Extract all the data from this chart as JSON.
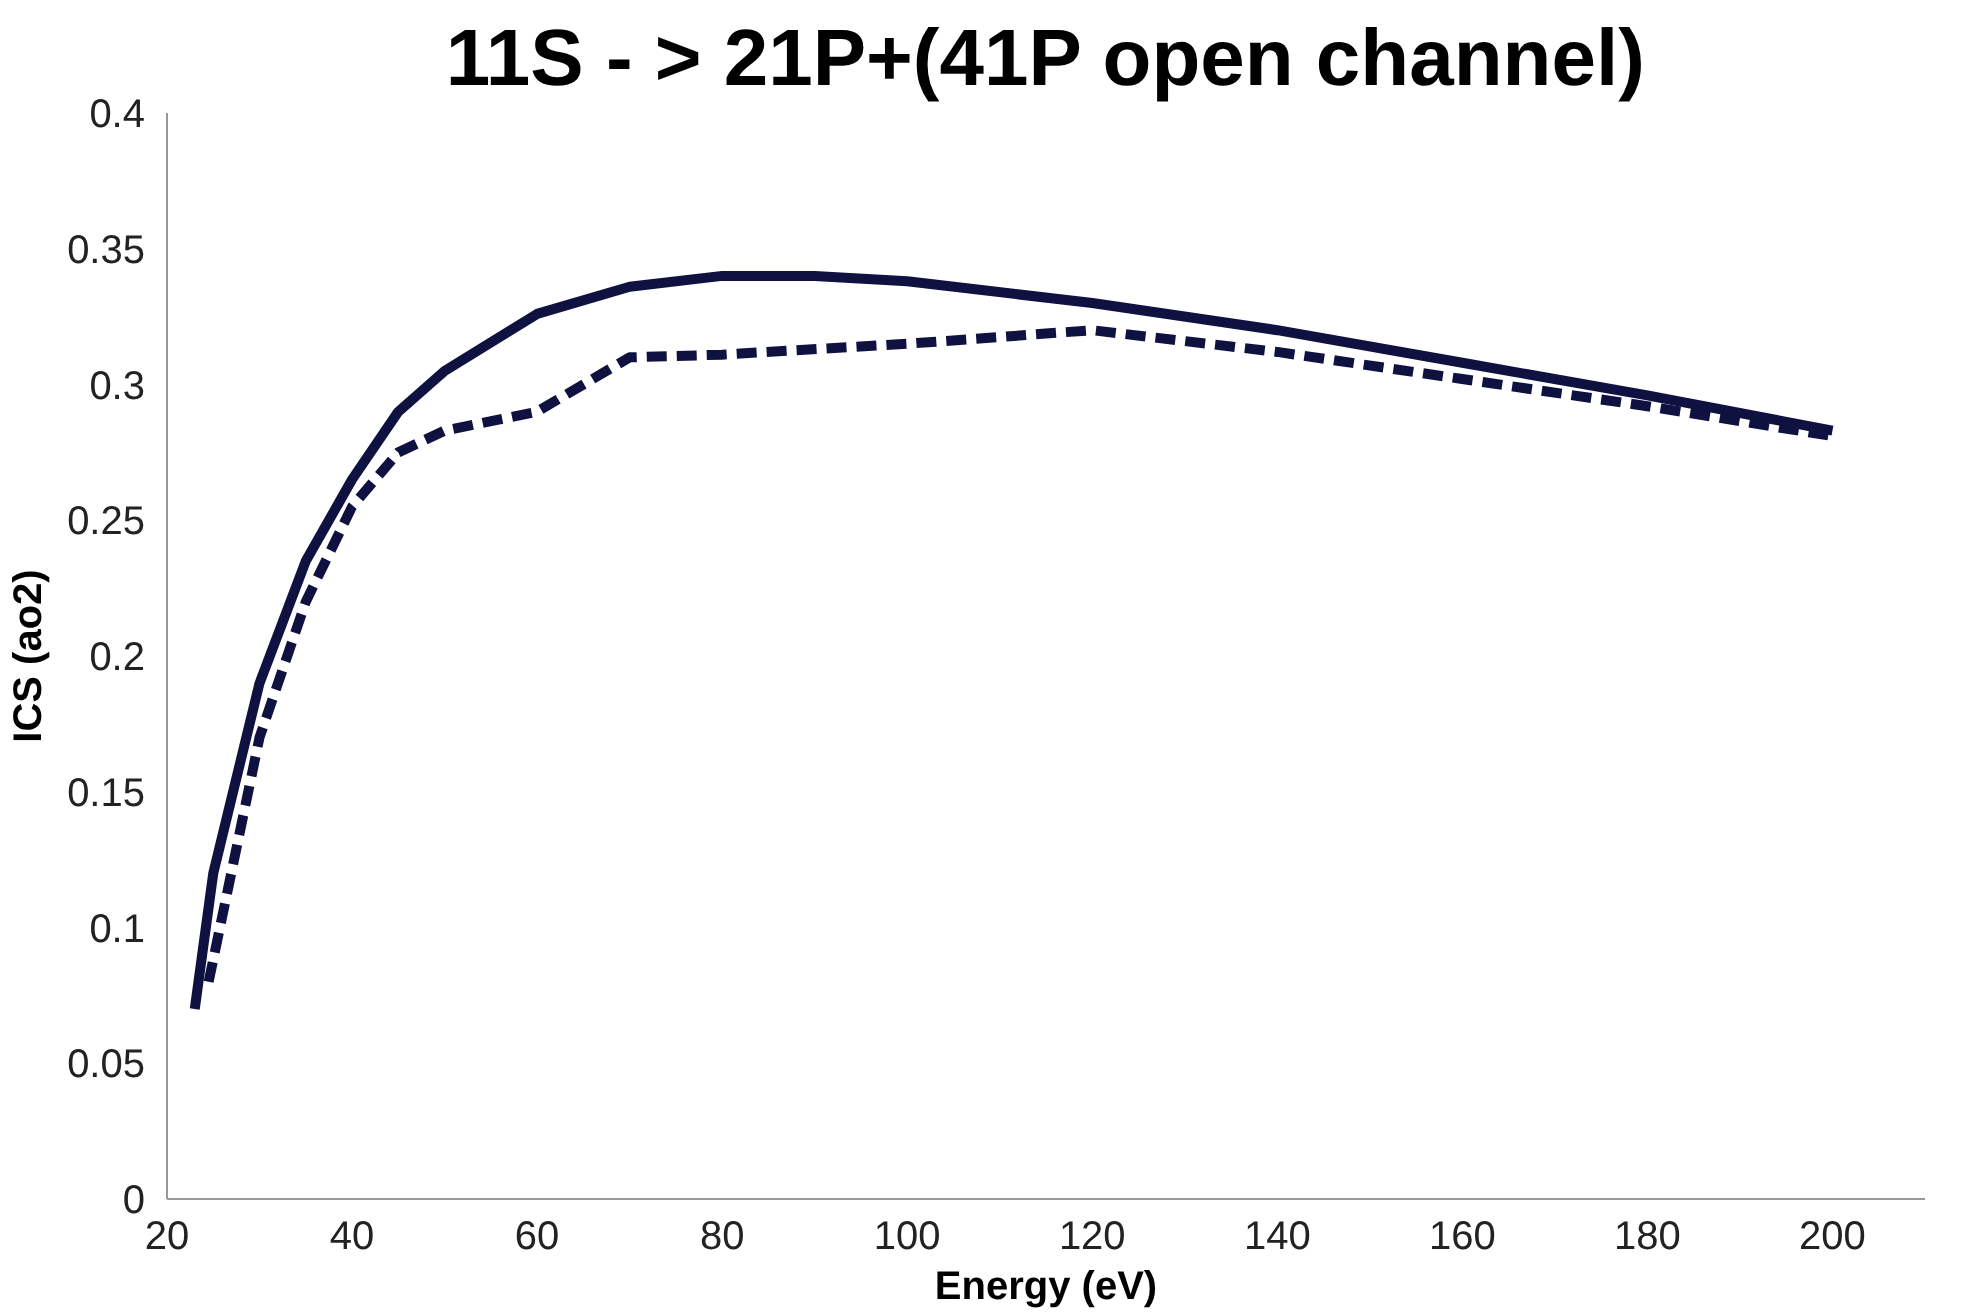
{
  "chart_data": {
    "type": "line",
    "title": "11S - > 21P+(41P open channel)",
    "xlabel": "Energy (eV)",
    "ylabel": "ICS (ao2)",
    "xlim": [
      20,
      210
    ],
    "ylim": [
      0,
      0.4
    ],
    "xticks": [
      20,
      40,
      60,
      80,
      100,
      120,
      140,
      160,
      180,
      200
    ],
    "yticks": [
      0,
      0.05,
      0.1,
      0.15,
      0.2,
      0.25,
      0.3,
      0.35,
      0.4
    ],
    "grid": false,
    "series": [
      {
        "color": "#0f1240",
        "line_style": "solid",
        "x": [
          23,
          25,
          30,
          35,
          40,
          45,
          50,
          60,
          70,
          80,
          90,
          100,
          120,
          140,
          160,
          180,
          200
        ],
        "values": [
          0.07,
          0.12,
          0.19,
          0.235,
          0.265,
          0.29,
          0.305,
          0.326,
          0.336,
          0.34,
          0.34,
          0.338,
          0.33,
          0.32,
          0.308,
          0.296,
          0.283
        ]
      },
      {
        "color": "#0f1240",
        "line_style": "dashed",
        "x": [
          24.5,
          30,
          35,
          40,
          45,
          50,
          60,
          70,
          80,
          100,
          120,
          140,
          160,
          180,
          200
        ],
        "values": [
          0.08,
          0.17,
          0.22,
          0.255,
          0.275,
          0.283,
          0.29,
          0.31,
          0.311,
          0.315,
          0.32,
          0.312,
          0.302,
          0.292,
          0.281
        ]
      }
    ]
  }
}
